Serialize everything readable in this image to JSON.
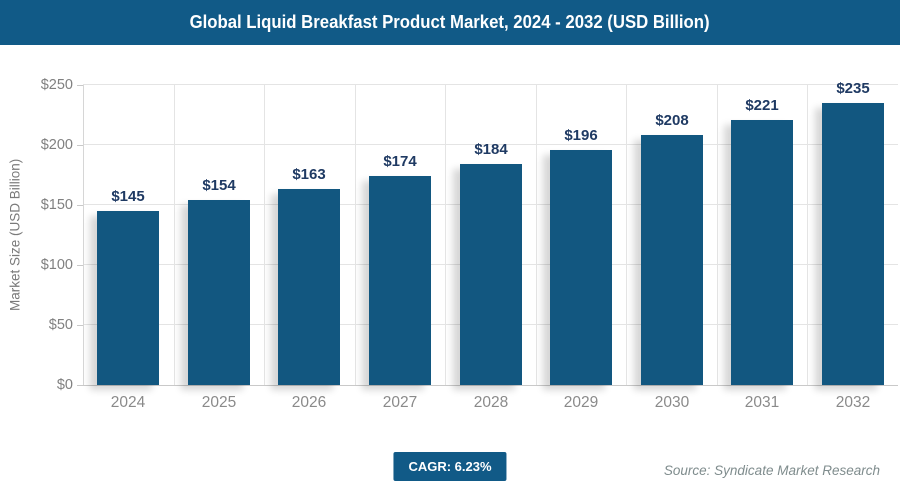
{
  "header": {
    "title": "Global Liquid Breakfast Product Market, 2024 - 2032 (USD Billion)",
    "background_color": "#115a87",
    "text_color": "#ffffff"
  },
  "chart_data": {
    "type": "bar",
    "title": "Global Liquid Breakfast Product Market, 2024 - 2032 (USD Billion)",
    "categories": [
      "2024",
      "2025",
      "2026",
      "2027",
      "2028",
      "2029",
      "2030",
      "2031",
      "2032"
    ],
    "values": [
      145,
      154,
      163,
      174,
      184,
      196,
      208,
      221,
      235
    ],
    "value_labels": [
      "$145",
      "$154",
      "$163",
      "$174",
      "$184",
      "$196",
      "$208",
      "$221",
      "$235"
    ],
    "xlabel": "",
    "ylabel": "Market Size (USD Billion)",
    "ylim": [
      0,
      250
    ],
    "ytick_step": 50,
    "ytick_labels": [
      "$0",
      "$50",
      "$100",
      "$150",
      "$200",
      "$250"
    ],
    "grid": true,
    "legend": "none",
    "bar_color": "#125780",
    "value_label_color": "#1f3a63",
    "axis_text_color": "#808080",
    "gridline_color": "#e4e4e4"
  },
  "footer": {
    "cagr_label": "CAGR: 6.23%",
    "cagr_badge_color": "#115a87",
    "source": "Source: Syndicate Market Research",
    "source_color": "#7f8c8d"
  }
}
